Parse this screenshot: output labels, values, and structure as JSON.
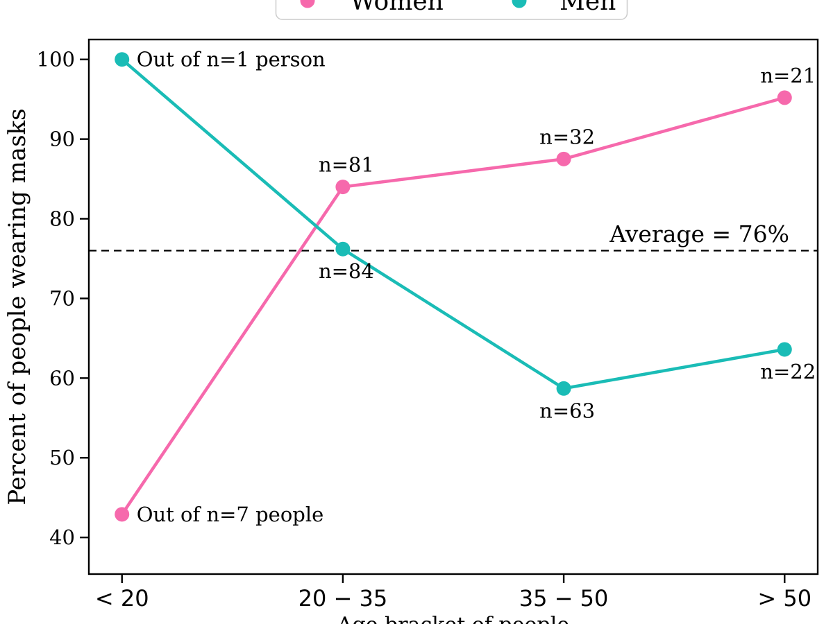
{
  "figure": {
    "background": "#ffffff",
    "axis_color": "#000000",
    "text_color": "#000000"
  },
  "legend": {
    "position": "top-center, clipped at top edge",
    "border_color": "#cccccc",
    "entries": [
      {
        "label": "Women",
        "color": "#F669AC"
      },
      {
        "label": "Men",
        "color": "#1ABCB6"
      }
    ]
  },
  "chart_data": {
    "type": "line",
    "categories": [
      "< 20",
      "20 − 35",
      "35 − 50",
      "> 50"
    ],
    "xlabel": "Age bracket of people",
    "xlabel_clipped": true,
    "ylabel": "Percent of people wearing masks",
    "yticks": [
      40,
      50,
      60,
      70,
      80,
      90,
      100
    ],
    "ylim": [
      35.4,
      102.5
    ],
    "grid": false,
    "series": [
      {
        "name": "Women",
        "color": "#F669AC",
        "values": [
          42.9,
          84.0,
          87.5,
          95.2
        ],
        "point_labels": [
          "Out of n=7 people",
          "n=81",
          "n=32",
          "n=21"
        ],
        "point_label_placement": [
          "right",
          "above",
          "above",
          "above"
        ]
      },
      {
        "name": "Men",
        "color": "#1ABCB6",
        "values": [
          100.0,
          76.2,
          58.7,
          63.6
        ],
        "point_labels": [
          "Out of n=1 person",
          "n=84",
          "n=63",
          "n=22"
        ],
        "point_label_placement": [
          "right",
          "below",
          "below",
          "below"
        ]
      }
    ],
    "average_line": {
      "value": 76,
      "label": "Average = 76%",
      "style": "dashed",
      "color": "#000000"
    }
  }
}
